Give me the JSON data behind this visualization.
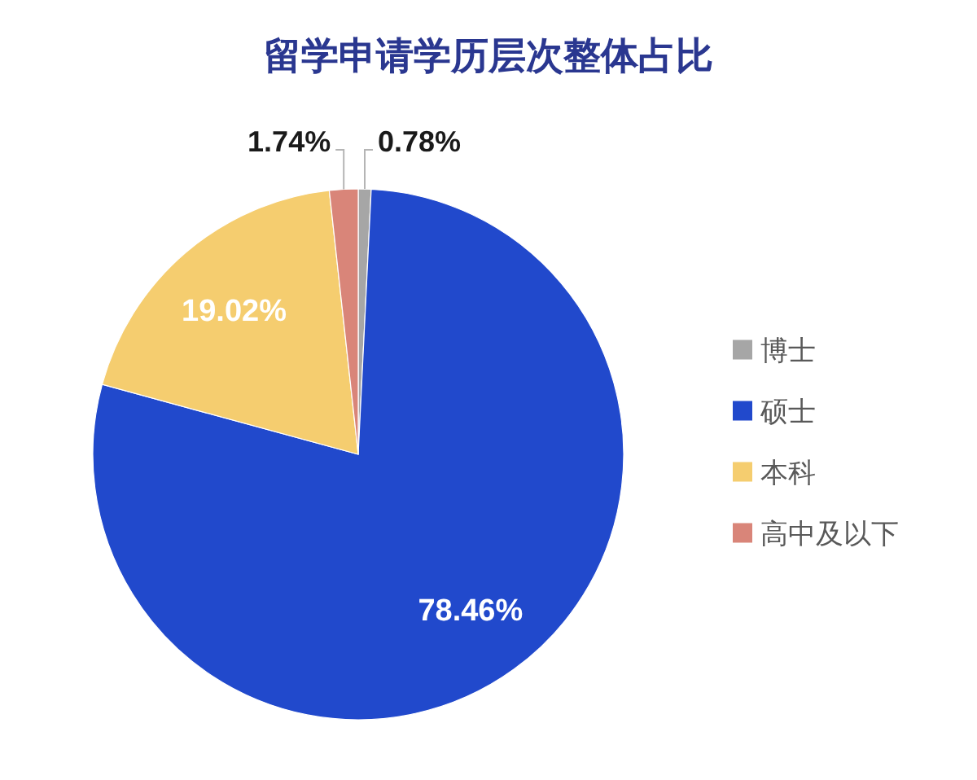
{
  "chart_data": {
    "type": "pie",
    "title": "留学申请学历层次整体占比",
    "categories": [
      "博士",
      "硕士",
      "本科",
      "高中及以下"
    ],
    "values": [
      0.78,
      78.46,
      19.02,
      1.74
    ],
    "colors": [
      "#a6a6a6",
      "#2149cc",
      "#f5cd6f",
      "#d98579"
    ],
    "value_labels": [
      "0.78%",
      "78.46%",
      "19.02%",
      "1.74%"
    ],
    "legend": "right"
  }
}
